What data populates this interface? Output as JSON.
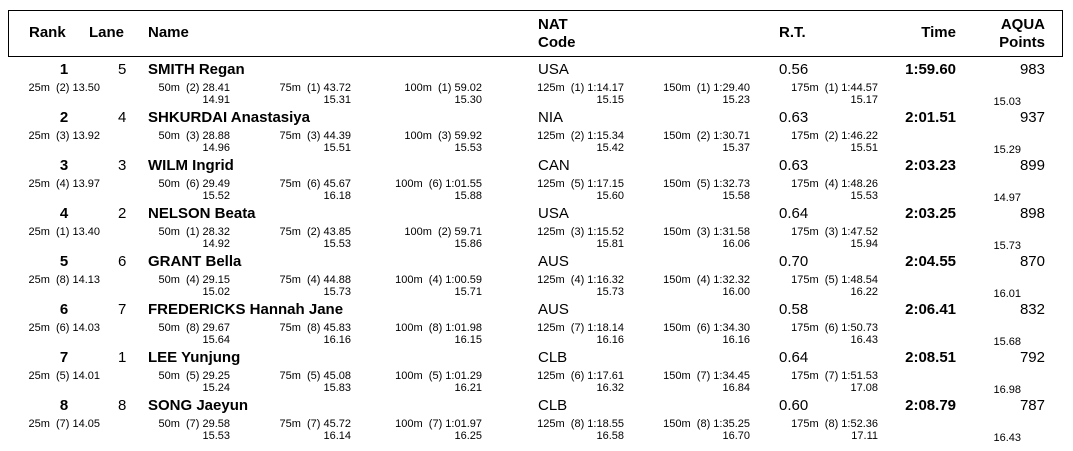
{
  "header": {
    "rank": "Rank",
    "lane": "Lane",
    "name": "Name",
    "nat_line1": "NAT",
    "nat_line2": "Code",
    "rt": "R.T.",
    "time": "Time",
    "points_line1": "AQUA",
    "points_line2": "Points"
  },
  "athletes": [
    {
      "rank": "1",
      "lane": "5",
      "name": "SMITH Regan",
      "nat": "USA",
      "rt": "0.56",
      "time": "1:59.60",
      "points": "983",
      "splits": [
        [
          "25m",
          "(2)",
          "13.50",
          ""
        ],
        [
          "50m",
          "(2)",
          "28.41",
          "14.91"
        ],
        [
          "75m",
          "(1)",
          "43.72",
          "15.31"
        ],
        [
          "100m",
          "(1)",
          "59.02",
          "15.30"
        ],
        [
          "125m",
          "(1)",
          "1:14.17",
          "15.15"
        ],
        [
          "150m",
          "(1)",
          "1:29.40",
          "15.23"
        ],
        [
          "175m",
          "(1)",
          "1:44.57",
          "15.17"
        ]
      ],
      "final_lap": "15.03"
    },
    {
      "rank": "2",
      "lane": "4",
      "name": "SHKURDAI Anastasiya",
      "nat": "NIA",
      "rt": "0.63",
      "time": "2:01.51",
      "points": "937",
      "splits": [
        [
          "25m",
          "(3)",
          "13.92",
          ""
        ],
        [
          "50m",
          "(3)",
          "28.88",
          "14.96"
        ],
        [
          "75m",
          "(3)",
          "44.39",
          "15.51"
        ],
        [
          "100m",
          "(3)",
          "59.92",
          "15.53"
        ],
        [
          "125m",
          "(2)",
          "1:15.34",
          "15.42"
        ],
        [
          "150m",
          "(2)",
          "1:30.71",
          "15.37"
        ],
        [
          "175m",
          "(2)",
          "1:46.22",
          "15.51"
        ]
      ],
      "final_lap": "15.29"
    },
    {
      "rank": "3",
      "lane": "3",
      "name": "WILM Ingrid",
      "nat": "CAN",
      "rt": "0.63",
      "time": "2:03.23",
      "points": "899",
      "splits": [
        [
          "25m",
          "(4)",
          "13.97",
          ""
        ],
        [
          "50m",
          "(6)",
          "29.49",
          "15.52"
        ],
        [
          "75m",
          "(6)",
          "45.67",
          "16.18"
        ],
        [
          "100m",
          "(6)",
          "1:01.55",
          "15.88"
        ],
        [
          "125m",
          "(5)",
          "1:17.15",
          "15.60"
        ],
        [
          "150m",
          "(5)",
          "1:32.73",
          "15.58"
        ],
        [
          "175m",
          "(4)",
          "1:48.26",
          "15.53"
        ]
      ],
      "final_lap": "14.97"
    },
    {
      "rank": "4",
      "lane": "2",
      "name": "NELSON Beata",
      "nat": "USA",
      "rt": "0.64",
      "time": "2:03.25",
      "points": "898",
      "splits": [
        [
          "25m",
          "(1)",
          "13.40",
          ""
        ],
        [
          "50m",
          "(1)",
          "28.32",
          "14.92"
        ],
        [
          "75m",
          "(2)",
          "43.85",
          "15.53"
        ],
        [
          "100m",
          "(2)",
          "59.71",
          "15.86"
        ],
        [
          "125m",
          "(3)",
          "1:15.52",
          "15.81"
        ],
        [
          "150m",
          "(3)",
          "1:31.58",
          "16.06"
        ],
        [
          "175m",
          "(3)",
          "1:47.52",
          "15.94"
        ]
      ],
      "final_lap": "15.73"
    },
    {
      "rank": "5",
      "lane": "6",
      "name": "GRANT Bella",
      "nat": "AUS",
      "rt": "0.70",
      "time": "2:04.55",
      "points": "870",
      "splits": [
        [
          "25m",
          "(8)",
          "14.13",
          ""
        ],
        [
          "50m",
          "(4)",
          "29.15",
          "15.02"
        ],
        [
          "75m",
          "(4)",
          "44.88",
          "15.73"
        ],
        [
          "100m",
          "(4)",
          "1:00.59",
          "15.71"
        ],
        [
          "125m",
          "(4)",
          "1:16.32",
          "15.73"
        ],
        [
          "150m",
          "(4)",
          "1:32.32",
          "16.00"
        ],
        [
          "175m",
          "(5)",
          "1:48.54",
          "16.22"
        ]
      ],
      "final_lap": "16.01"
    },
    {
      "rank": "6",
      "lane": "7",
      "name": "FREDERICKS Hannah Jane",
      "nat": "AUS",
      "rt": "0.58",
      "time": "2:06.41",
      "points": "832",
      "splits": [
        [
          "25m",
          "(6)",
          "14.03",
          ""
        ],
        [
          "50m",
          "(8)",
          "29.67",
          "15.64"
        ],
        [
          "75m",
          "(8)",
          "45.83",
          "16.16"
        ],
        [
          "100m",
          "(8)",
          "1:01.98",
          "16.15"
        ],
        [
          "125m",
          "(7)",
          "1:18.14",
          "16.16"
        ],
        [
          "150m",
          "(6)",
          "1:34.30",
          "16.16"
        ],
        [
          "175m",
          "(6)",
          "1:50.73",
          "16.43"
        ]
      ],
      "final_lap": "15.68"
    },
    {
      "rank": "7",
      "lane": "1",
      "name": "LEE Yunjung",
      "nat": "CLB",
      "rt": "0.64",
      "time": "2:08.51",
      "points": "792",
      "splits": [
        [
          "25m",
          "(5)",
          "14.01",
          ""
        ],
        [
          "50m",
          "(5)",
          "29.25",
          "15.24"
        ],
        [
          "75m",
          "(5)",
          "45.08",
          "15.83"
        ],
        [
          "100m",
          "(5)",
          "1:01.29",
          "16.21"
        ],
        [
          "125m",
          "(6)",
          "1:17.61",
          "16.32"
        ],
        [
          "150m",
          "(7)",
          "1:34.45",
          "16.84"
        ],
        [
          "175m",
          "(7)",
          "1:51.53",
          "17.08"
        ]
      ],
      "final_lap": "16.98"
    },
    {
      "rank": "8",
      "lane": "8",
      "name": "SONG Jaeyun",
      "nat": "CLB",
      "rt": "0.60",
      "time": "2:08.79",
      "points": "787",
      "splits": [
        [
          "25m",
          "(7)",
          "14.05",
          ""
        ],
        [
          "50m",
          "(7)",
          "29.58",
          "15.53"
        ],
        [
          "75m",
          "(7)",
          "45.72",
          "16.14"
        ],
        [
          "100m",
          "(7)",
          "1:01.97",
          "16.25"
        ],
        [
          "125m",
          "(8)",
          "1:18.55",
          "16.58"
        ],
        [
          "150m",
          "(8)",
          "1:35.25",
          "16.70"
        ],
        [
          "175m",
          "(8)",
          "1:52.36",
          "17.11"
        ]
      ],
      "final_lap": "16.43"
    }
  ]
}
